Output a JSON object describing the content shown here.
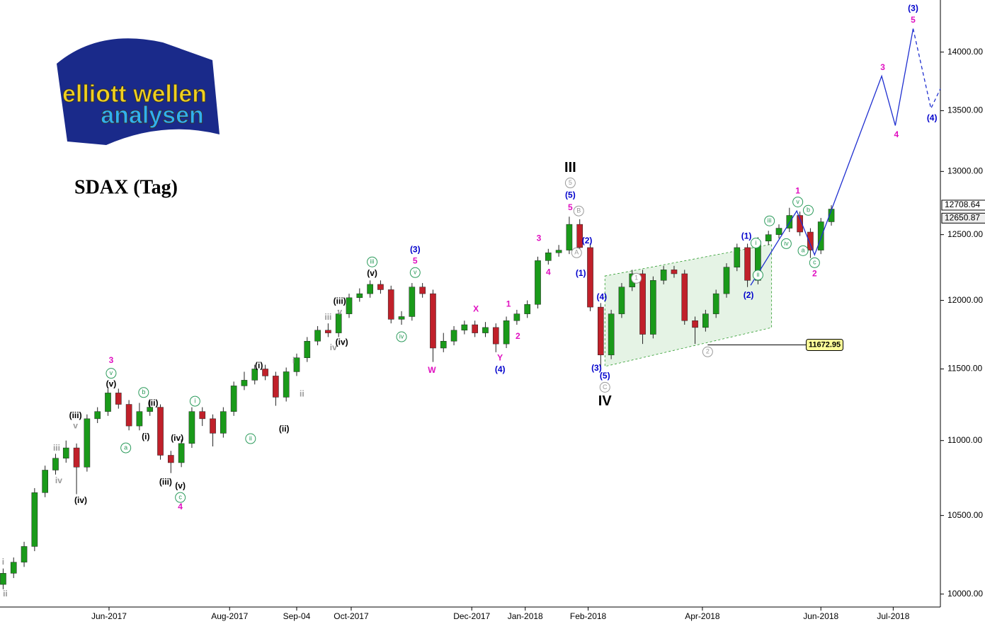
{
  "chart_data": {
    "type": "candlestick",
    "title": "SDAX (Tag)",
    "logo": {
      "line1": "elliott wellen",
      "line2": "analysen"
    },
    "log_scale": true,
    "up_color": "#1a9a1a",
    "down_color": "#c0202a",
    "xlim": [
      -0.3,
      89.4
    ],
    "ylim": [
      9920,
      14460
    ],
    "xticks": [
      {
        "value": 10.1,
        "label": "Jun-2017"
      },
      {
        "value": 21.6,
        "label": "Aug-2017"
      },
      {
        "value": 28.0,
        "label": "Sep-04"
      },
      {
        "value": 33.2,
        "label": "Oct-2017"
      },
      {
        "value": 44.7,
        "label": "Dec-2017"
      },
      {
        "value": 49.8,
        "label": "Jan-2018"
      },
      {
        "value": 55.8,
        "label": "Feb-2018"
      },
      {
        "value": 66.7,
        "label": "Apr-2018"
      },
      {
        "value": 78.0,
        "label": "Jun-2018"
      },
      {
        "value": 84.9,
        "label": "Jul-2018"
      }
    ],
    "yticks": [
      {
        "value": 10000,
        "label": "10000.00"
      },
      {
        "value": 10500,
        "label": "10500.00"
      },
      {
        "value": 11000,
        "label": "11000.00"
      },
      {
        "value": 11500,
        "label": "11500.00"
      },
      {
        "value": 12000,
        "label": "12000.00"
      },
      {
        "value": 12500,
        "label": "12500.00"
      },
      {
        "value": 13000,
        "label": "13000.00"
      },
      {
        "value": 13500,
        "label": "13500.00"
      },
      {
        "value": 14000,
        "label": "14000.00"
      }
    ],
    "open": [
      10060,
      10130,
      10200,
      10300,
      10650,
      10800,
      10880,
      10950,
      10820,
      11150,
      11200,
      11330,
      11250,
      11100,
      11200,
      11230,
      10900,
      10850,
      10980,
      11200,
      11150,
      11050,
      11200,
      11380,
      11420,
      11500,
      11450,
      11300,
      11480,
      11580,
      11700,
      11780,
      11760,
      11900,
      12020,
      12050,
      12120,
      12080,
      11860,
      11880,
      12100,
      12050,
      11650,
      11700,
      11780,
      11820,
      11760,
      11800,
      11680,
      11850,
      11900,
      11970,
      12300,
      12360,
      12380,
      12580,
      12400,
      11950,
      11600,
      11900,
      12100,
      12200,
      11750,
      12150,
      12230,
      12200,
      11850,
      11800,
      11900,
      12050,
      12250,
      12400,
      12150,
      12450,
      12500,
      12550,
      12650,
      12520,
      12380,
      12600
    ],
    "high": [
      10160,
      10230,
      10330,
      10680,
      10830,
      10910,
      11000,
      10980,
      11180,
      11230,
      11360,
      11360,
      11280,
      11260,
      11280,
      11250,
      10930,
      11010,
      11230,
      11230,
      11180,
      11230,
      11410,
      11480,
      11530,
      11530,
      11480,
      11510,
      11610,
      11730,
      11810,
      11830,
      11930,
      12050,
      12090,
      12150,
      12150,
      12110,
      11920,
      12130,
      12130,
      12080,
      11760,
      11810,
      11850,
      11850,
      11840,
      11830,
      11880,
      11930,
      12000,
      12330,
      12390,
      12420,
      12640,
      12620,
      12430,
      11980,
      11930,
      12130,
      12230,
      12230,
      12180,
      12260,
      12260,
      12230,
      11880,
      11930,
      12080,
      12280,
      12430,
      12430,
      12480,
      12530,
      12580,
      12710,
      12680,
      12550,
      12630,
      12730
    ],
    "low": [
      10030,
      10100,
      10170,
      10270,
      10620,
      10770,
      10850,
      10640,
      10790,
      11120,
      11170,
      11220,
      11070,
      11070,
      11170,
      10870,
      10780,
      10820,
      10950,
      11100,
      10960,
      11020,
      11170,
      11350,
      11390,
      11420,
      11240,
      11270,
      11450,
      11550,
      11670,
      11730,
      11730,
      11870,
      11990,
      12020,
      12050,
      11830,
      11820,
      11850,
      12020,
      11550,
      11620,
      11670,
      11750,
      11730,
      11730,
      11620,
      11650,
      11820,
      11870,
      11940,
      12270,
      12330,
      12350,
      12370,
      11920,
      11500,
      11570,
      11870,
      12070,
      11680,
      11720,
      12120,
      12170,
      11820,
      11680,
      11770,
      11870,
      12020,
      12220,
      12100,
      12120,
      12420,
      12470,
      12520,
      12490,
      12320,
      12350,
      12570
    ],
    "close": [
      10130,
      10200,
      10300,
      10650,
      10800,
      10880,
      10950,
      10820,
      11150,
      11200,
      11330,
      11250,
      11100,
      11200,
      11230,
      10900,
      10850,
      10980,
      11200,
      11150,
      11050,
      11200,
      11380,
      11420,
      11500,
      11450,
      11300,
      11480,
      11580,
      11700,
      11780,
      11760,
      11900,
      12020,
      12050,
      12120,
      12080,
      11860,
      11880,
      12100,
      12050,
      11650,
      11700,
      11780,
      11820,
      11760,
      11800,
      11680,
      11850,
      11900,
      11970,
      12300,
      12360,
      12380,
      12580,
      12400,
      11950,
      11600,
      11900,
      12100,
      12200,
      11750,
      12150,
      12230,
      12200,
      11850,
      11800,
      11900,
      12050,
      12250,
      12400,
      12150,
      12450,
      12500,
      12550,
      12650,
      12520,
      12380,
      12600,
      12700
    ],
    "projection": {
      "color": "#1f2fd0",
      "x": [
        71.3,
        75.7,
        77.4,
        83.8,
        85.1,
        86.8
      ],
      "values": [
        12113,
        12685,
        12344,
        13793,
        13376,
        14205
      ]
    },
    "projection_dashed": {
      "color": "#1f2fd0",
      "x": [
        86.8,
        88.5,
        89.4
      ],
      "values": [
        14205,
        13518,
        13685
      ]
    },
    "channel": {
      "color": "#2a9a2a",
      "x": [
        57.4,
        73.3
      ],
      "upper": [
        12183,
        12426
      ],
      "lower": [
        11518,
        11799
      ]
    },
    "level": {
      "value": 11672.95,
      "x": [
        67.2,
        76.6
      ]
    },
    "last_prices": [
      12708.64,
      12650.87
    ],
    "annotations": [
      {
        "text": "III",
        "x": 54.1,
        "y": 13027,
        "color": "#000000",
        "big": true
      },
      {
        "text": "5",
        "x": 54.1,
        "y": 12908,
        "color": "#999999",
        "circle": true
      },
      {
        "text": "(5)",
        "x": 54.1,
        "y": 12806,
        "color": "#0000cc"
      },
      {
        "text": "5",
        "x": 54.1,
        "y": 12710,
        "color": "#e010c0"
      },
      {
        "text": "B",
        "x": 54.9,
        "y": 12685,
        "color": "#999999",
        "circle": true
      },
      {
        "text": "A",
        "x": 54.7,
        "y": 12360,
        "color": "#999999",
        "circle": true
      },
      {
        "text": "(2)",
        "x": 55.7,
        "y": 12450,
        "color": "#0000cc"
      },
      {
        "text": "(1)",
        "x": 55.1,
        "y": 12200,
        "color": "#0000cc"
      },
      {
        "text": "(4)",
        "x": 57.1,
        "y": 12022,
        "color": "#0000cc"
      },
      {
        "text": "(3)",
        "x": 56.6,
        "y": 11503,
        "color": "#0000cc"
      },
      {
        "text": "(5)",
        "x": 57.4,
        "y": 11448,
        "color": "#0000cc"
      },
      {
        "text": "C",
        "x": 57.4,
        "y": 11370,
        "color": "#999999",
        "circle": true
      },
      {
        "text": "IV",
        "x": 57.4,
        "y": 11270,
        "color": "#000000",
        "big": true
      },
      {
        "text": "1",
        "x": 60.4,
        "y": 12166,
        "color": "#999999",
        "circle": true
      },
      {
        "text": "2",
        "x": 67.2,
        "y": 11623,
        "color": "#999999",
        "circle": true
      },
      {
        "text": "(1)",
        "x": 70.9,
        "y": 12485,
        "color": "#0000cc"
      },
      {
        "text": "(2)",
        "x": 71.1,
        "y": 12037,
        "color": "#0000cc"
      },
      {
        "text": "i",
        "x": 71.8,
        "y": 12435,
        "color": "#2a9a5a",
        "circle": true
      },
      {
        "text": "ii",
        "x": 72.0,
        "y": 12190,
        "color": "#2a9a5a",
        "circle": true
      },
      {
        "text": "iii",
        "x": 73.1,
        "y": 12607,
        "color": "#2a9a5a",
        "circle": true
      },
      {
        "text": "iv",
        "x": 74.7,
        "y": 12430,
        "color": "#2a9a5a",
        "circle": true
      },
      {
        "text": "v",
        "x": 75.8,
        "y": 12756,
        "color": "#2a9a5a",
        "circle": true
      },
      {
        "text": "1",
        "x": 75.8,
        "y": 12840,
        "color": "#e010c0"
      },
      {
        "text": "b",
        "x": 76.8,
        "y": 12690,
        "color": "#2a9a5a",
        "circle": true
      },
      {
        "text": "a",
        "x": 76.3,
        "y": 12376,
        "color": "#2a9a5a",
        "circle": true
      },
      {
        "text": "c",
        "x": 77.4,
        "y": 12284,
        "color": "#2a9a5a",
        "circle": true
      },
      {
        "text": "2",
        "x": 77.4,
        "y": 12198,
        "color": "#e010c0"
      },
      {
        "text": "3",
        "x": 83.9,
        "y": 13864,
        "color": "#e010c0"
      },
      {
        "text": "4",
        "x": 85.2,
        "y": 13298,
        "color": "#e010c0"
      },
      {
        "text": "5",
        "x": 86.8,
        "y": 14278,
        "color": "#e010c0"
      },
      {
        "text": "(3)",
        "x": 86.8,
        "y": 14383,
        "color": "#0000cc"
      },
      {
        "text": "(4)",
        "x": 88.6,
        "y": 13434,
        "color": "#0000cc"
      },
      {
        "text": "(3)",
        "x": 39.3,
        "y": 12382,
        "color": "#0000cc"
      },
      {
        "text": "5",
        "x": 39.3,
        "y": 12295,
        "color": "#e010c0"
      },
      {
        "text": "v",
        "x": 39.3,
        "y": 12209,
        "color": "#2a9a5a",
        "circle": true
      },
      {
        "text": "iii",
        "x": 35.2,
        "y": 12290,
        "color": "#2a9a5a",
        "circle": true
      },
      {
        "text": "(v)",
        "x": 35.2,
        "y": 12200,
        "color": "#000000"
      },
      {
        "text": "iv",
        "x": 38.0,
        "y": 11732,
        "color": "#2a9a5a",
        "circle": true
      },
      {
        "text": "X",
        "x": 45.1,
        "y": 11934,
        "color": "#e010c0"
      },
      {
        "text": "1",
        "x": 48.2,
        "y": 11970,
        "color": "#e010c0"
      },
      {
        "text": "2",
        "x": 49.1,
        "y": 11732,
        "color": "#e010c0"
      },
      {
        "text": "W",
        "x": 40.9,
        "y": 11487,
        "color": "#e010c0"
      },
      {
        "text": "Y",
        "x": 47.4,
        "y": 11578,
        "color": "#e010c0"
      },
      {
        "text": "(4)",
        "x": 47.4,
        "y": 11492,
        "color": "#0000cc"
      },
      {
        "text": "3",
        "x": 51.1,
        "y": 12470,
        "color": "#e010c0"
      },
      {
        "text": "4",
        "x": 52.0,
        "y": 12209,
        "color": "#e010c0"
      },
      {
        "text": "3",
        "x": 10.3,
        "y": 11560,
        "color": "#e010c0"
      },
      {
        "text": "v",
        "x": 10.3,
        "y": 11469,
        "color": "#2a9a5a",
        "circle": true
      },
      {
        "text": "(v)",
        "x": 10.3,
        "y": 11390,
        "color": "#000000"
      },
      {
        "text": "b",
        "x": 13.4,
        "y": 11333,
        "color": "#2a9a5a",
        "circle": true
      },
      {
        "text": "(ii)",
        "x": 14.3,
        "y": 11255,
        "color": "#000000"
      },
      {
        "text": "(i)",
        "x": 13.6,
        "y": 11024,
        "color": "#000000"
      },
      {
        "text": "a",
        "x": 11.7,
        "y": 10950,
        "color": "#2a9a5a",
        "circle": true
      },
      {
        "text": "(iii)",
        "x": 6.9,
        "y": 11170,
        "color": "#000000"
      },
      {
        "text": "v",
        "x": 6.9,
        "y": 11100,
        "color": "#999999"
      },
      {
        "text": "iii",
        "x": 5.1,
        "y": 10946,
        "color": "#999999"
      },
      {
        "text": "iv",
        "x": 5.3,
        "y": 10727,
        "color": "#999999"
      },
      {
        "text": "(iv)",
        "x": 7.4,
        "y": 10596,
        "color": "#000000"
      },
      {
        "text": "i",
        "x": 0.0,
        "y": 10200,
        "color": "#999999"
      },
      {
        "text": "ii",
        "x": 0.2,
        "y": 10000,
        "color": "#999999"
      },
      {
        "text": "(iii)",
        "x": 15.5,
        "y": 10717,
        "color": "#000000"
      },
      {
        "text": "(v)",
        "x": 16.9,
        "y": 10693,
        "color": "#000000"
      },
      {
        "text": "c",
        "x": 16.9,
        "y": 10618,
        "color": "#2a9a5a",
        "circle": true
      },
      {
        "text": "4",
        "x": 16.9,
        "y": 10554,
        "color": "#e010c0"
      },
      {
        "text": "(iv)",
        "x": 16.6,
        "y": 11014,
        "color": "#000000"
      },
      {
        "text": "i",
        "x": 18.3,
        "y": 11272,
        "color": "#2a9a5a",
        "circle": true
      },
      {
        "text": "ii",
        "x": 23.6,
        "y": 11013,
        "color": "#2a9a5a",
        "circle": true
      },
      {
        "text": "(i)",
        "x": 24.4,
        "y": 11521,
        "color": "#000000"
      },
      {
        "text": "(ii)",
        "x": 26.8,
        "y": 11076,
        "color": "#000000"
      },
      {
        "text": "i",
        "x": 27.7,
        "y": 11557,
        "color": "#999999"
      },
      {
        "text": "ii",
        "x": 28.5,
        "y": 11321,
        "color": "#999999"
      },
      {
        "text": "(iii)",
        "x": 32.1,
        "y": 11991,
        "color": "#000000"
      },
      {
        "text": "v",
        "x": 32.1,
        "y": 11913,
        "color": "#999999"
      },
      {
        "text": "iii",
        "x": 31.0,
        "y": 11872,
        "color": "#999999"
      },
      {
        "text": "(iv)",
        "x": 32.3,
        "y": 11690,
        "color": "#000000"
      },
      {
        "text": "iv",
        "x": 31.5,
        "y": 11650,
        "color": "#999999"
      }
    ]
  }
}
